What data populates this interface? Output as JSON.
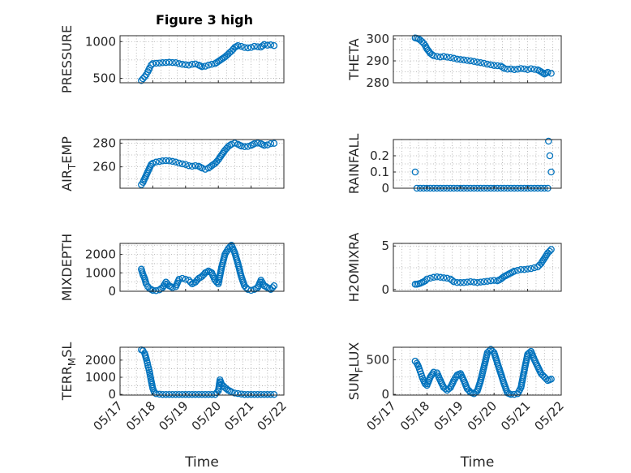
{
  "figure_title": "Figure 3 high",
  "xlabel": "Time",
  "xtick_labels": [
    "05/17",
    "05/18",
    "05/19",
    "05/20",
    "05/21",
    "05/22"
  ],
  "marker_color": "#0072bd",
  "chart_data": [
    {
      "type": "scatter",
      "name": "pressure",
      "ylabel": "PRESSURE",
      "ylim": [
        440,
        1080
      ],
      "yticks": [
        500,
        1000
      ],
      "grid": true,
      "xlim": [
        "05/17",
        "05/22"
      ],
      "x_days": [
        0.65,
        0.7,
        0.75,
        0.8,
        0.85,
        0.9,
        0.95,
        1.0,
        1.1,
        1.2,
        1.3,
        1.4,
        1.5,
        1.6,
        1.7,
        1.8,
        1.9,
        2.0,
        2.1,
        2.2,
        2.3,
        2.4,
        2.5,
        2.6,
        2.7,
        2.8,
        2.9,
        3.0,
        3.1,
        3.2,
        3.3,
        3.4,
        3.5,
        3.6,
        3.7,
        3.8,
        3.9,
        4.0,
        4.1,
        4.2,
        4.3,
        4.4,
        4.5,
        4.6,
        4.7
      ],
      "y": [
        470,
        495,
        520,
        550,
        590,
        640,
        680,
        700,
        705,
        708,
        712,
        715,
        718,
        715,
        712,
        700,
        690,
        685,
        680,
        690,
        695,
        680,
        660,
        665,
        680,
        690,
        700,
        730,
        760,
        790,
        830,
        870,
        920,
        945,
        935,
        920,
        915,
        920,
        935,
        930,
        925,
        960,
        950,
        955,
        945
      ]
    },
    {
      "type": "scatter",
      "name": "theta",
      "ylabel": "THETA",
      "ylim": [
        280,
        301.5
      ],
      "yticks": [
        280,
        290,
        300
      ],
      "grid": true,
      "xlim": [
        "05/17",
        "05/22"
      ],
      "x_days": [
        0.65,
        0.7,
        0.75,
        0.8,
        0.85,
        0.9,
        0.95,
        1.0,
        1.1,
        1.2,
        1.3,
        1.4,
        1.5,
        1.6,
        1.7,
        1.8,
        1.9,
        2.0,
        2.1,
        2.2,
        2.3,
        2.4,
        2.5,
        2.6,
        2.7,
        2.8,
        2.9,
        3.0,
        3.1,
        3.2,
        3.3,
        3.4,
        3.5,
        3.6,
        3.7,
        3.8,
        3.9,
        4.0,
        4.1,
        4.2,
        4.3,
        4.4,
        4.5,
        4.6,
        4.7
      ],
      "y": [
        300.5,
        300.3,
        300.0,
        299.5,
        298.8,
        298.0,
        297.0,
        295.5,
        293.5,
        292.3,
        292.0,
        291.8,
        292.0,
        291.7,
        291.5,
        291.2,
        290.8,
        290.6,
        290.4,
        290.2,
        290.0,
        289.7,
        289.4,
        289.2,
        288.9,
        288.5,
        288.2,
        287.9,
        287.8,
        287.6,
        286.6,
        286.2,
        286.3,
        286.0,
        286.2,
        286.5,
        286.3,
        286.0,
        286.4,
        286.1,
        285.9,
        285.0,
        284.0,
        284.8,
        284.3
      ]
    },
    {
      "type": "scatter",
      "name": "air-temp",
      "ylabel": "AIR_TEMP",
      "ylabel_parts": {
        "base": "AIR",
        "sub": "T",
        "rest": "EMP"
      },
      "ylim": [
        242,
        283
      ],
      "yticks": [
        260,
        280
      ],
      "grid": true,
      "xlim": [
        "05/17",
        "05/22"
      ],
      "x_days": [
        0.65,
        0.7,
        0.75,
        0.8,
        0.85,
        0.9,
        0.95,
        1.0,
        1.1,
        1.2,
        1.3,
        1.4,
        1.5,
        1.6,
        1.7,
        1.8,
        1.9,
        2.0,
        2.1,
        2.2,
        2.3,
        2.4,
        2.5,
        2.6,
        2.7,
        2.8,
        2.9,
        3.0,
        3.1,
        3.2,
        3.3,
        3.4,
        3.5,
        3.6,
        3.7,
        3.8,
        3.9,
        4.0,
        4.1,
        4.2,
        4.3,
        4.4,
        4.5,
        4.6,
        4.7
      ],
      "y": [
        245,
        247,
        250,
        253,
        256,
        259,
        262,
        263,
        264,
        264.5,
        265,
        265.2,
        265,
        264.6,
        264,
        263.2,
        262.5,
        262,
        261,
        260.5,
        261,
        260.5,
        259,
        258,
        259,
        261,
        263,
        266,
        270,
        274,
        277,
        279,
        280,
        279,
        277.5,
        277,
        277.2,
        278,
        279.5,
        280,
        279.5,
        278,
        278.5,
        279.5,
        279.8
      ]
    },
    {
      "type": "scatter",
      "name": "rainfall",
      "ylabel": "RAINFALL",
      "ylim": [
        0,
        0.3
      ],
      "yticks": [
        0,
        0.1,
        0.2
      ],
      "grid": true,
      "xlim": [
        "05/17",
        "05/22"
      ],
      "x_days": [
        0.65,
        0.7,
        0.8,
        0.9,
        1.0,
        1.1,
        1.2,
        1.3,
        1.4,
        1.5,
        1.6,
        1.7,
        1.8,
        1.9,
        2.0,
        2.1,
        2.2,
        2.3,
        2.4,
        2.5,
        2.6,
        2.7,
        2.8,
        2.9,
        3.0,
        3.1,
        3.2,
        3.3,
        3.4,
        3.5,
        3.6,
        3.7,
        3.8,
        3.9,
        4.0,
        4.1,
        4.2,
        4.3,
        4.4,
        4.5,
        4.6,
        4.62,
        4.66,
        4.7
      ],
      "y": [
        0.1,
        0,
        0,
        0,
        0,
        0,
        0,
        0,
        0,
        0,
        0,
        0,
        0,
        0,
        0,
        0,
        0,
        0,
        0,
        0,
        0,
        0,
        0,
        0,
        0,
        0,
        0,
        0,
        0,
        0,
        0,
        0,
        0,
        0,
        0,
        0,
        0,
        0,
        0,
        0,
        0,
        0.29,
        0.2,
        0.1
      ]
    },
    {
      "type": "scatter",
      "name": "mixdepth",
      "ylabel": "MIXDEPTH",
      "ylim": [
        0,
        2600
      ],
      "yticks": [
        0,
        1000,
        2000
      ],
      "grid": true,
      "xlim": [
        "05/17",
        "05/22"
      ],
      "x_days": [
        0.65,
        0.7,
        0.75,
        0.8,
        0.85,
        0.9,
        0.95,
        1.0,
        1.1,
        1.2,
        1.3,
        1.4,
        1.5,
        1.6,
        1.7,
        1.8,
        1.9,
        2.0,
        2.1,
        2.2,
        2.3,
        2.4,
        2.5,
        2.6,
        2.7,
        2.8,
        2.9,
        3.0,
        3.1,
        3.2,
        3.3,
        3.4,
        3.5,
        3.6,
        3.7,
        3.8,
        3.9,
        4.0,
        4.1,
        4.2,
        4.3,
        4.4,
        4.5,
        4.6,
        4.7
      ],
      "y": [
        1200,
        900,
        700,
        400,
        250,
        150,
        100,
        50,
        30,
        80,
        200,
        500,
        300,
        200,
        250,
        650,
        700,
        650,
        600,
        400,
        500,
        700,
        800,
        1000,
        1100,
        1000,
        600,
        400,
        1300,
        2000,
        2300,
        2500,
        2100,
        1500,
        800,
        300,
        100,
        50,
        100,
        200,
        600,
        300,
        200,
        100,
        300
      ]
    },
    {
      "type": "scatter",
      "name": "h2omixra",
      "ylabel": "H2OMIXRA",
      "ylim": [
        -0.2,
        5.3
      ],
      "yticks": [
        0,
        5
      ],
      "grid": true,
      "xlim": [
        "05/17",
        "05/22"
      ],
      "x_days": [
        0.65,
        0.7,
        0.75,
        0.8,
        0.85,
        0.9,
        0.95,
        1.0,
        1.1,
        1.2,
        1.3,
        1.4,
        1.5,
        1.6,
        1.7,
        1.8,
        1.9,
        2.0,
        2.1,
        2.2,
        2.3,
        2.4,
        2.5,
        2.6,
        2.7,
        2.8,
        2.9,
        3.0,
        3.1,
        3.2,
        3.3,
        3.4,
        3.5,
        3.6,
        3.7,
        3.8,
        3.9,
        4.0,
        4.1,
        4.2,
        4.3,
        4.4,
        4.5,
        4.6,
        4.7
      ],
      "y": [
        0.6,
        0.6,
        0.65,
        0.7,
        0.8,
        0.9,
        1.0,
        1.2,
        1.3,
        1.4,
        1.45,
        1.4,
        1.35,
        1.3,
        1.2,
        0.9,
        0.8,
        0.8,
        0.8,
        0.85,
        0.9,
        0.85,
        0.8,
        0.85,
        0.9,
        0.95,
        1.0,
        1.05,
        1.0,
        1.2,
        1.5,
        1.7,
        1.9,
        2.1,
        2.2,
        2.3,
        2.3,
        2.35,
        2.4,
        2.5,
        2.6,
        3.0,
        3.6,
        4.2,
        4.6
      ]
    },
    {
      "type": "scatter",
      "name": "terr-msl",
      "ylabel": "TERR_MSL",
      "ylabel_parts": {
        "base": "TERR",
        "sub": "M",
        "rest": "SL"
      },
      "ylim": [
        -40,
        2750
      ],
      "yticks": [
        0,
        1000,
        2000
      ],
      "grid": true,
      "xlim": [
        "05/17",
        "05/22"
      ],
      "x_days": [
        0.65,
        0.7,
        0.75,
        0.8,
        0.85,
        0.9,
        0.95,
        1.0,
        1.05,
        1.1,
        1.2,
        1.3,
        1.4,
        1.5,
        1.6,
        1.7,
        1.8,
        1.9,
        2.0,
        2.1,
        2.2,
        2.3,
        2.4,
        2.5,
        2.6,
        2.7,
        2.8,
        2.9,
        3.0,
        3.05,
        3.1,
        3.2,
        3.3,
        3.4,
        3.5,
        3.6,
        3.7,
        3.8,
        3.9,
        4.0,
        4.1,
        4.2,
        4.3,
        4.4,
        4.5,
        4.6,
        4.7
      ],
      "y": [
        2600,
        2550,
        2400,
        2100,
        1700,
        1300,
        800,
        350,
        120,
        40,
        10,
        0,
        0,
        0,
        0,
        0,
        0,
        0,
        0,
        0,
        0,
        0,
        0,
        0,
        0,
        0,
        0,
        0,
        200,
        850,
        600,
        400,
        250,
        150,
        80,
        50,
        20,
        0,
        0,
        0,
        0,
        0,
        0,
        0,
        0,
        0,
        0
      ]
    },
    {
      "type": "scatter",
      "name": "sun-flux",
      "ylabel": "SUN_FLUX",
      "ylabel_parts": {
        "base": "SUN",
        "sub": "F",
        "rest": "LUX"
      },
      "ylim": [
        -10,
        680
      ],
      "yticks": [
        0,
        500
      ],
      "grid": true,
      "xlim": [
        "05/17",
        "05/22"
      ],
      "x_days": [
        0.65,
        0.7,
        0.75,
        0.8,
        0.85,
        0.9,
        0.95,
        1.0,
        1.1,
        1.2,
        1.3,
        1.4,
        1.5,
        1.6,
        1.7,
        1.8,
        1.9,
        2.0,
        2.1,
        2.2,
        2.3,
        2.4,
        2.5,
        2.6,
        2.7,
        2.8,
        2.9,
        3.0,
        3.1,
        3.2,
        3.3,
        3.4,
        3.5,
        3.6,
        3.7,
        3.8,
        3.9,
        4.0,
        4.1,
        4.2,
        4.3,
        4.4,
        4.5,
        4.6,
        4.7
      ],
      "y": [
        480,
        450,
        400,
        330,
        260,
        200,
        150,
        130,
        250,
        320,
        310,
        200,
        100,
        60,
        100,
        200,
        280,
        300,
        200,
        80,
        30,
        10,
        50,
        200,
        400,
        600,
        650,
        600,
        450,
        300,
        150,
        20,
        0,
        0,
        10,
        100,
        350,
        580,
        620,
        500,
        400,
        300,
        250,
        200,
        220
      ]
    }
  ]
}
